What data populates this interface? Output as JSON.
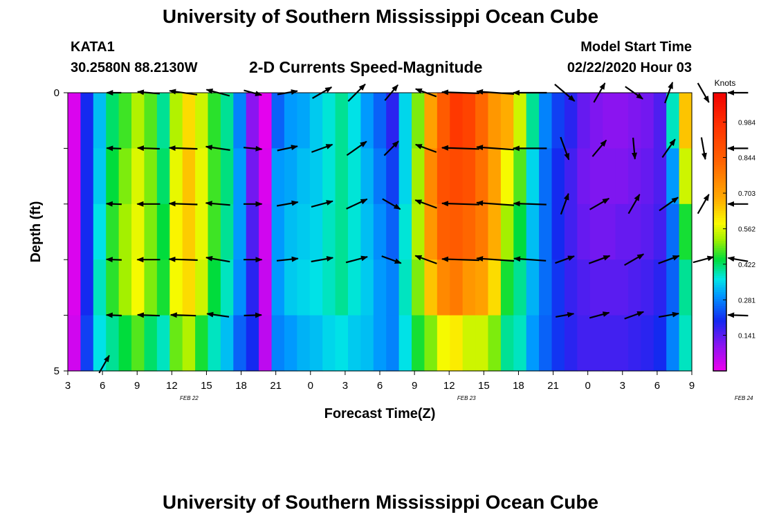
{
  "header": {
    "title": "University of Southern Mississippi Ocean Cube",
    "station": "KATA1",
    "coords": "30.2580N 88.2130W",
    "subtitle": "2-D Currents Speed-Magnitude",
    "model_label": "Model Start Time",
    "model_time": "02/22/2020 Hour 03"
  },
  "footer": {
    "title": "University of Southern Mississippi Ocean Cube"
  },
  "chart_data": {
    "type": "heatmap",
    "title": "2-D Currents Speed-Magnitude",
    "xlabel": "Forecast Time(Z)",
    "ylabel": "Depth (ft)",
    "ylim": [
      0,
      5
    ],
    "y_ticks": [
      "0",
      "5"
    ],
    "x_start_hour": 3,
    "x_step_hours": 3,
    "x_tick_labels": [
      "3",
      "6",
      "9",
      "12",
      "15",
      "18",
      "21",
      "0",
      "3",
      "6",
      "9",
      "12",
      "15",
      "18",
      "21",
      "0",
      "3",
      "6",
      "9"
    ],
    "date_labels": [
      {
        "label": "FEB 22",
        "hour_offset": 10.5
      },
      {
        "label": "FEB 23",
        "hour_offset": 34.5
      },
      {
        "label": "FEB 24",
        "hour_offset": 58.5
      }
    ],
    "colorbar": {
      "units": "Knots",
      "min": 0.0,
      "max": 1.1,
      "ticks": [
        "0.984",
        "0.844",
        "0.703",
        "0.562",
        "0.422",
        "0.281",
        "0.141"
      ]
    },
    "depth_levels": 5,
    "hour_step": 1,
    "speed_columns": [
      [
        0.02,
        0.02,
        0.02,
        0.02,
        0.03
      ],
      [
        0.2,
        0.2,
        0.2,
        0.2,
        0.22
      ],
      [
        0.33,
        0.34,
        0.36,
        0.38,
        0.36
      ],
      [
        0.42,
        0.44,
        0.46,
        0.46,
        0.4
      ],
      [
        0.47,
        0.5,
        0.52,
        0.52,
        0.44
      ],
      [
        0.53,
        0.56,
        0.57,
        0.58,
        0.48
      ],
      [
        0.48,
        0.5,
        0.5,
        0.5,
        0.42
      ],
      [
        0.4,
        0.42,
        0.44,
        0.45,
        0.38
      ],
      [
        0.53,
        0.57,
        0.59,
        0.58,
        0.49
      ],
      [
        0.62,
        0.65,
        0.64,
        0.62,
        0.53
      ],
      [
        0.55,
        0.57,
        0.57,
        0.55,
        0.45
      ],
      [
        0.46,
        0.47,
        0.47,
        0.44,
        0.38
      ],
      [
        0.4,
        0.41,
        0.4,
        0.38,
        0.33
      ],
      [
        0.28,
        0.3,
        0.3,
        0.29,
        0.25
      ],
      [
        0.1,
        0.12,
        0.15,
        0.18,
        0.2
      ],
      [
        0.01,
        0.02,
        0.03,
        0.04,
        0.05
      ],
      [
        0.25,
        0.3,
        0.3,
        0.3,
        0.28
      ],
      [
        0.3,
        0.31,
        0.33,
        0.34,
        0.3
      ],
      [
        0.31,
        0.33,
        0.34,
        0.35,
        0.32
      ],
      [
        0.34,
        0.34,
        0.35,
        0.36,
        0.33
      ],
      [
        0.37,
        0.37,
        0.38,
        0.38,
        0.35
      ],
      [
        0.4,
        0.4,
        0.4,
        0.4,
        0.36
      ],
      [
        0.36,
        0.37,
        0.37,
        0.37,
        0.34
      ],
      [
        0.3,
        0.32,
        0.33,
        0.34,
        0.33
      ],
      [
        0.25,
        0.27,
        0.29,
        0.3,
        0.3
      ],
      [
        0.18,
        0.22,
        0.25,
        0.28,
        0.28
      ],
      [
        0.35,
        0.35,
        0.37,
        0.38,
        0.36
      ],
      [
        0.5,
        0.52,
        0.53,
        0.5,
        0.45
      ],
      [
        0.7,
        0.75,
        0.72,
        0.65,
        0.5
      ],
      [
        0.85,
        0.88,
        0.84,
        0.75,
        0.58
      ],
      [
        0.95,
        0.9,
        0.85,
        0.78,
        0.6
      ],
      [
        0.92,
        0.88,
        0.82,
        0.72,
        0.55
      ],
      [
        0.82,
        0.8,
        0.78,
        0.7,
        0.55
      ],
      [
        0.72,
        0.7,
        0.68,
        0.62,
        0.5
      ],
      [
        0.68,
        0.58,
        0.52,
        0.45,
        0.4
      ],
      [
        0.55,
        0.48,
        0.44,
        0.4,
        0.38
      ],
      [
        0.4,
        0.35,
        0.33,
        0.32,
        0.3
      ],
      [
        0.28,
        0.26,
        0.26,
        0.26,
        0.25
      ],
      [
        0.22,
        0.2,
        0.2,
        0.21,
        0.21
      ],
      [
        0.18,
        0.16,
        0.16,
        0.17,
        0.18
      ],
      [
        0.13,
        0.12,
        0.13,
        0.15,
        0.16
      ],
      [
        0.11,
        0.11,
        0.12,
        0.14,
        0.16
      ],
      [
        0.1,
        0.11,
        0.12,
        0.14,
        0.16
      ],
      [
        0.1,
        0.11,
        0.13,
        0.14,
        0.16
      ],
      [
        0.11,
        0.12,
        0.13,
        0.15,
        0.17
      ],
      [
        0.12,
        0.13,
        0.14,
        0.16,
        0.18
      ],
      [
        0.15,
        0.15,
        0.16,
        0.18,
        0.2
      ],
      [
        0.38,
        0.3,
        0.26,
        0.25,
        0.28
      ],
      [
        0.65,
        0.55,
        0.45,
        0.4,
        0.38
      ]
    ],
    "arrow_columns": [
      {
        "hour": 4,
        "levels": [
          [
            0.2,
            180
          ],
          [
            0.2,
            178
          ],
          [
            0.22,
            178
          ],
          [
            0.22,
            178
          ],
          [
            0.22,
            178
          ]
        ]
      },
      {
        "hour": 7,
        "levels": [
          [
            0.4,
            175
          ],
          [
            0.4,
            178
          ],
          [
            0.42,
            180
          ],
          [
            0.42,
            180
          ],
          [
            0.4,
            178
          ]
        ]
      },
      {
        "hour": 10,
        "levels": [
          [
            0.55,
            172
          ],
          [
            0.56,
            178
          ],
          [
            0.56,
            178
          ],
          [
            0.57,
            178
          ],
          [
            0.48,
            178
          ]
        ]
      },
      {
        "hour": 13,
        "levels": [
          [
            0.45,
            165
          ],
          [
            0.46,
            172
          ],
          [
            0.46,
            175
          ],
          [
            0.45,
            170
          ],
          [
            0.4,
            172
          ]
        ]
      },
      {
        "hour": 16,
        "levels": [
          [
            0.3,
            -15
          ],
          [
            0.3,
            -5
          ],
          [
            0.3,
            0
          ],
          [
            0.3,
            0
          ],
          [
            0.28,
            2
          ]
        ]
      },
      {
        "hour": 19,
        "levels": [
          [
            0.35,
            10
          ],
          [
            0.36,
            12
          ],
          [
            0.38,
            10
          ],
          [
            0.38,
            6
          ]
        ]
      },
      {
        "hour": 22,
        "levels": [
          [
            0.4,
            30
          ],
          [
            0.4,
            20
          ],
          [
            0.4,
            15
          ],
          [
            0.4,
            10
          ]
        ]
      },
      {
        "hour": 25,
        "levels": [
          [
            0.45,
            45
          ],
          [
            0.45,
            35
          ],
          [
            0.42,
            25
          ],
          [
            0.4,
            15
          ]
        ]
      },
      {
        "hour": 28,
        "levels": [
          [
            0.35,
            50
          ],
          [
            0.35,
            45
          ],
          [
            0.36,
            -30
          ],
          [
            0.36,
            -20
          ]
        ]
      },
      {
        "hour": 31,
        "levels": [
          [
            0.4,
            160
          ],
          [
            0.4,
            160
          ],
          [
            0.42,
            160
          ],
          [
            0.42,
            160
          ]
        ]
      },
      {
        "hour": 34,
        "levels": [
          [
            0.8,
            178
          ],
          [
            0.8,
            178
          ],
          [
            0.8,
            178
          ],
          [
            0.8,
            178
          ]
        ]
      },
      {
        "hour": 37,
        "levels": [
          [
            0.8,
            176
          ],
          [
            0.8,
            176
          ],
          [
            0.8,
            176
          ],
          [
            0.8,
            176
          ]
        ]
      },
      {
        "hour": 40,
        "levels": [
          [
            0.7,
            180
          ],
          [
            0.7,
            180
          ],
          [
            0.68,
            178
          ],
          [
            0.66,
            176
          ]
        ]
      },
      {
        "hour": 43,
        "levels": [
          [
            0.5,
            -40
          ],
          [
            0.45,
            -70
          ],
          [
            0.4,
            70
          ],
          [
            0.35,
            20
          ],
          [
            0.3,
            10
          ]
        ]
      },
      {
        "hour": 46,
        "levels": [
          [
            0.4,
            60
          ],
          [
            0.38,
            50
          ],
          [
            0.4,
            30
          ],
          [
            0.4,
            20
          ],
          [
            0.35,
            15
          ]
        ]
      },
      {
        "hour": 49,
        "levels": [
          [
            0.38,
            -35
          ],
          [
            0.38,
            -85
          ],
          [
            0.4,
            60
          ],
          [
            0.4,
            30
          ],
          [
            0.35,
            20
          ]
        ]
      },
      {
        "hour": 52,
        "levels": [
          [
            0.4,
            70
          ],
          [
            0.4,
            55
          ],
          [
            0.42,
            35
          ],
          [
            0.4,
            20
          ],
          [
            0.35,
            10
          ]
        ]
      },
      {
        "hour": 55,
        "levels": [
          [
            0.4,
            -60
          ],
          [
            0.4,
            -80
          ],
          [
            0.4,
            60
          ],
          [
            0.38,
            15
          ]
        ]
      },
      {
        "hour": 58,
        "levels": [
          [
            0.35,
            180
          ],
          [
            0.35,
            180
          ],
          [
            0.35,
            180
          ],
          [
            0.35,
            170
          ],
          [
            0.35,
            178
          ]
        ]
      }
    ],
    "corner_arrow": {
      "hour": 3,
      "depth": 5,
      "speed": 0.35,
      "dir": 60
    }
  }
}
